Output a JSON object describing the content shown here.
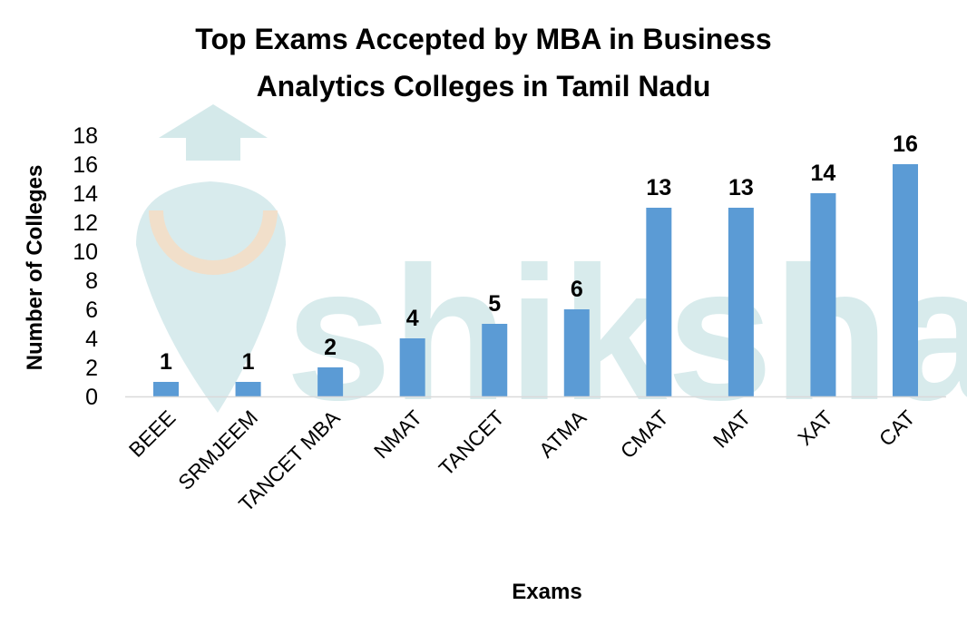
{
  "watermark": "shiksha",
  "chart_data": {
    "type": "bar",
    "title": "Top Exams Accepted by MBA in Business Analytics Colleges in Tamil Nadu",
    "title_lines": [
      "Top Exams Accepted by MBA in Business",
      "Analytics Colleges in Tamil Nadu"
    ],
    "xlabel": "Exams",
    "ylabel": "Number of Colleges",
    "categories": [
      "BEEE",
      "SRMJEEM",
      "TANCET MBA",
      "NMAT",
      "TANCET",
      "ATMA",
      "CMAT",
      "MAT",
      "XAT",
      "CAT"
    ],
    "values": [
      1,
      1,
      2,
      4,
      5,
      6,
      13,
      13,
      14,
      16
    ],
    "ylim": [
      0,
      18
    ],
    "yticks": [
      0,
      2,
      4,
      6,
      8,
      10,
      12,
      14,
      16,
      18
    ],
    "grid": false,
    "legend": "none",
    "bar_color": "#5b9bd5"
  }
}
